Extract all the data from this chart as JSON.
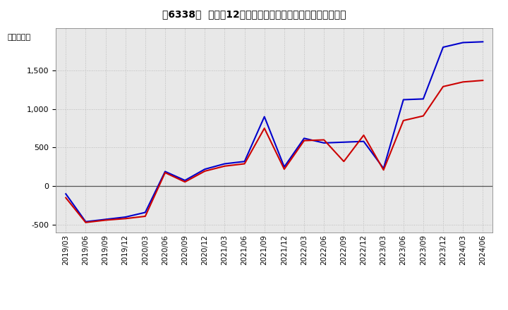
{
  "title": "［6338］  利益だ12か月移動合計の対前年同期増減額の推移",
  "ylabel": "（百万円）",
  "background_color": "#ffffff",
  "grid_color": "#bbbbbb",
  "plot_bg_color": "#e8e8e8",
  "line1_color": "#0000cc",
  "line2_color": "#cc0000",
  "ylim": [
    -600,
    2050
  ],
  "yticks": [
    -500,
    0,
    500,
    1000,
    1500
  ],
  "dates": [
    "2019/03",
    "2019/06",
    "2019/09",
    "2019/12",
    "2020/03",
    "2020/06",
    "2020/09",
    "2020/12",
    "2021/03",
    "2021/06",
    "2021/09",
    "2021/12",
    "2022/03",
    "2022/06",
    "2022/09",
    "2022/12",
    "2023/03",
    "2023/06",
    "2023/09",
    "2023/12",
    "2024/03",
    "2024/06"
  ],
  "line1_values": [
    -100,
    -460,
    -430,
    -400,
    -340,
    190,
    75,
    220,
    290,
    320,
    900,
    250,
    620,
    560,
    570,
    580,
    230,
    1120,
    1130,
    1800,
    1860,
    1870
  ],
  "line2_values": [
    -150,
    -470,
    -440,
    -420,
    -390,
    175,
    55,
    195,
    260,
    290,
    750,
    220,
    590,
    600,
    320,
    660,
    210,
    850,
    910,
    1290,
    1350,
    1370
  ]
}
